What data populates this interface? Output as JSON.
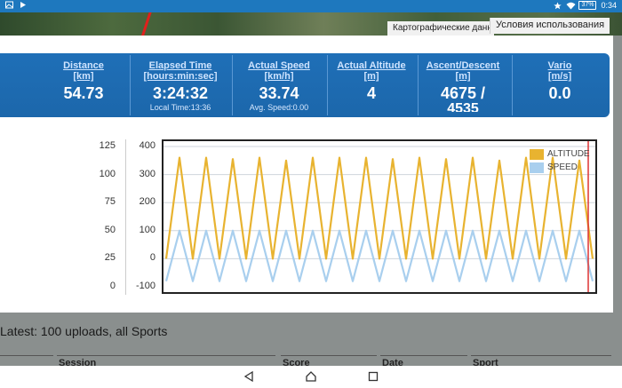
{
  "status": {
    "battery": "37%",
    "time": "0:34"
  },
  "map": {
    "attribution": "Картографические данные",
    "terms": "Условия использования"
  },
  "stats": [
    {
      "label": "Distance",
      "unit": "[km]",
      "value": "54.73",
      "sub": ""
    },
    {
      "label": "Elapsed Time",
      "unit": "[hours:min:sec]",
      "value": "3:24:32",
      "sub": "Local Time:13:36"
    },
    {
      "label": "Actual Speed",
      "unit": "[km/h]",
      "value": "33.74",
      "sub": "Avg. Speed:0.00"
    },
    {
      "label": "Actual Altitude",
      "unit": "[m]",
      "value": "4",
      "sub": ""
    },
    {
      "label": "Ascent/Descent",
      "unit": "[m]",
      "value": "4675 /",
      "sub": "4535"
    },
    {
      "label": "Vario",
      "unit": "[m/s]",
      "value": "0.0",
      "sub": ""
    }
  ],
  "chart_data": {
    "type": "line",
    "y_speed_ticks": [
      "125",
      "100",
      "75",
      "50",
      "25",
      "0"
    ],
    "y_alt_ticks": [
      "400",
      "300",
      "200",
      "100",
      "0",
      "-100"
    ],
    "ylim_altitude": [
      -100,
      400
    ],
    "ylim_speed": [
      0,
      125
    ],
    "grid": true,
    "legend_position": "top-right",
    "series": [
      {
        "name": "ALTITUDE",
        "color": "#e8b330",
        "axis": "left-inner",
        "values": [
          0,
          360,
          0,
          360,
          0,
          355,
          0,
          360,
          0,
          350,
          0,
          360,
          0,
          360,
          0,
          360,
          0,
          355,
          0,
          360,
          0,
          355,
          0,
          360,
          0,
          350,
          0,
          360,
          0,
          360,
          0,
          350,
          0
        ]
      },
      {
        "name": "SPEED",
        "color": "#a9cfee",
        "axis": "left-outer",
        "values": [
          5,
          50,
          5,
          50,
          5,
          50,
          5,
          50,
          5,
          50,
          5,
          50,
          5,
          50,
          5,
          50,
          5,
          50,
          5,
          50,
          5,
          50,
          5,
          50,
          5,
          50,
          5,
          50,
          5,
          50,
          5,
          50,
          5
        ]
      }
    ]
  },
  "legend": {
    "altitude": "ALTITUDE",
    "speed": "SPEED"
  },
  "latest": {
    "text": "Latest: 100 uploads, all Sports"
  },
  "table_headers": [
    "Session",
    "Score",
    "Date",
    "Sport"
  ],
  "colors": {
    "statusbar": "#1e78be",
    "stats_bg": "#1c67ab",
    "altitude": "#e8b330",
    "speed": "#a9cfee"
  }
}
